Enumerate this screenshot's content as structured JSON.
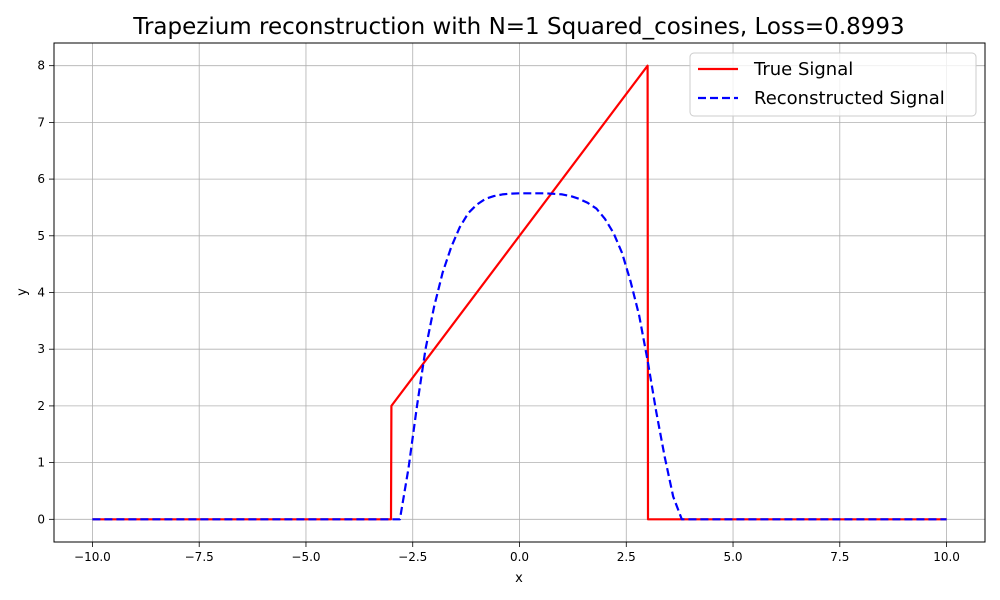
{
  "chart_data": {
    "type": "line",
    "title": "Trapezium reconstruction with N=1 Squared_cosines, Loss=0.8993",
    "xlabel": "x",
    "ylabel": "y",
    "xlim": [
      -10.9,
      10.9
    ],
    "ylim": [
      -0.4,
      8.4
    ],
    "x_ticks": [
      -10.0,
      -7.5,
      -5.0,
      -2.5,
      0.0,
      2.5,
      5.0,
      7.5,
      10.0
    ],
    "x_tick_labels": [
      "−10.0",
      "−7.5",
      "−5.0",
      "−2.5",
      "0.0",
      "2.5",
      "5.0",
      "7.5",
      "10.0"
    ],
    "y_ticks": [
      0,
      1,
      2,
      3,
      4,
      5,
      6,
      7,
      8
    ],
    "y_tick_labels": [
      "0",
      "1",
      "2",
      "3",
      "4",
      "5",
      "6",
      "7",
      "8"
    ],
    "grid": true,
    "legend_position": "top-right",
    "series": [
      {
        "name": "True Signal",
        "color": "#ff0000",
        "style": "solid",
        "x": [
          -10,
          -3.01,
          -3.0,
          3.0,
          3.01,
          10
        ],
        "y": [
          0,
          0,
          2,
          8,
          0,
          0
        ]
      },
      {
        "name": "Reconstructed Signal",
        "color": "#0000ff",
        "style": "dashed",
        "x": [
          -10,
          -2.8,
          -2.6,
          -2.4,
          -2.2,
          -2.0,
          -1.8,
          -1.6,
          -1.4,
          -1.2,
          -1.0,
          -0.8,
          -0.6,
          -0.4,
          -0.2,
          0.0,
          0.2,
          0.4,
          0.6,
          0.8,
          1.0,
          1.2,
          1.4,
          1.6,
          1.8,
          2.0,
          2.2,
          2.4,
          2.6,
          2.8,
          3.0,
          3.2,
          3.4,
          3.6,
          3.8,
          10
        ],
        "y": [
          0,
          0,
          0.9,
          2.0,
          3.0,
          3.75,
          4.35,
          4.8,
          5.15,
          5.4,
          5.55,
          5.65,
          5.7,
          5.73,
          5.745,
          5.75,
          5.75,
          5.75,
          5.75,
          5.74,
          5.73,
          5.7,
          5.65,
          5.58,
          5.48,
          5.3,
          5.05,
          4.7,
          4.2,
          3.6,
          2.8,
          1.9,
          1.1,
          0.4,
          0,
          0
        ]
      }
    ]
  }
}
